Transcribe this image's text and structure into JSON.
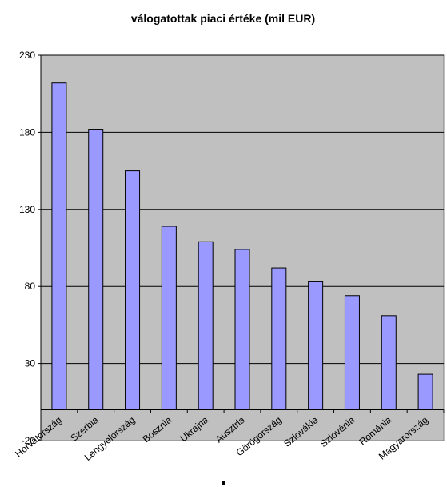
{
  "chart_data": {
    "type": "bar",
    "title": "válogatottak piaci értéke (mil EUR)",
    "xlabel": "",
    "ylabel": "",
    "ylim": [
      -20,
      230
    ],
    "yticks": [
      -20,
      30,
      80,
      130,
      180,
      230
    ],
    "categories": [
      "Horvátország",
      "Szerbia",
      "Lengyelország",
      "Bosznia",
      "Ukrajna",
      "Ausztria",
      "Görögország",
      "Szlovákia",
      "Szlovénia",
      "Románia",
      "Magyarország"
    ],
    "values": [
      212,
      182,
      155,
      119,
      109,
      104,
      92,
      83,
      74,
      61,
      23
    ],
    "grid": true,
    "legend": "none",
    "colors": {
      "plot_background": "#c0c0c0",
      "bar_fill": "#9999ff",
      "bar_stroke": "#000000",
      "gridline": "#000000"
    }
  }
}
